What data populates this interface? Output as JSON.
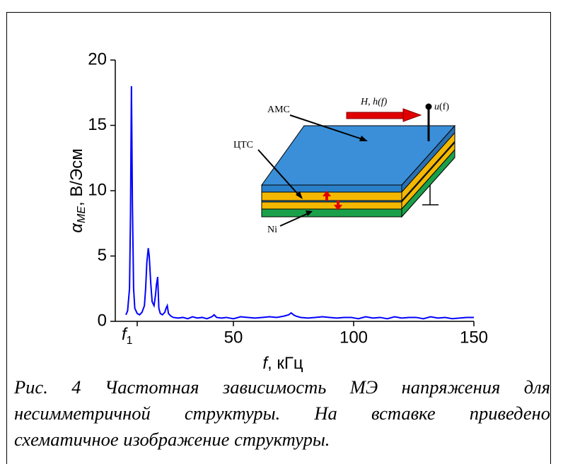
{
  "chart_data": {
    "type": "line",
    "x_label": {
      "symbol": "f",
      "unit": ", кГц"
    },
    "y_label": {
      "symbol": "α",
      "subscript": "ME",
      "unit": ", В/Эсм"
    },
    "color": "#0000ff",
    "x": [
      5.3,
      6,
      6.8,
      7.2,
      7.6,
      8,
      8.5,
      9,
      10,
      11,
      12,
      13,
      13.5,
      14,
      14.6,
      15,
      15.6,
      16.2,
      17,
      17.6,
      18,
      18.5,
      19,
      19.6,
      20.5,
      21.5,
      22,
      22.5,
      23,
      24,
      25,
      27,
      29,
      31,
      33,
      35,
      37,
      39,
      41,
      42,
      43,
      45,
      47,
      50,
      53,
      56,
      59,
      62,
      65,
      68,
      71,
      73,
      74,
      75,
      76,
      78,
      81,
      84,
      87,
      90,
      93,
      96,
      99,
      102,
      105,
      108,
      111,
      114,
      117,
      120,
      123,
      126,
      129,
      132,
      135,
      138,
      141,
      144,
      147,
      150
    ],
    "values": [
      0.5,
      0.8,
      2.5,
      8,
      18,
      9,
      2.5,
      1.0,
      0.6,
      0.5,
      0.7,
      1.2,
      2.5,
      4.5,
      5.6,
      5.0,
      3.0,
      1.5,
      1.2,
      2.0,
      2.8,
      3.4,
      1.0,
      0.6,
      0.5,
      0.7,
      1.0,
      1.2,
      0.6,
      0.4,
      0.3,
      0.25,
      0.3,
      0.2,
      0.35,
      0.25,
      0.3,
      0.2,
      0.35,
      0.5,
      0.3,
      0.25,
      0.3,
      0.2,
      0.35,
      0.3,
      0.25,
      0.3,
      0.35,
      0.3,
      0.4,
      0.5,
      0.65,
      0.5,
      0.4,
      0.3,
      0.25,
      0.3,
      0.35,
      0.3,
      0.25,
      0.3,
      0.3,
      0.2,
      0.35,
      0.25,
      0.3,
      0.2,
      0.35,
      0.25,
      0.3,
      0.3,
      0.2,
      0.35,
      0.25,
      0.3,
      0.2,
      0.25,
      0.3,
      0.3
    ],
    "xlim": [
      0,
      150
    ],
    "ylim": [
      0,
      20
    ],
    "xticks": [
      {
        "value": 10,
        "label": "f",
        "subscript": "1"
      },
      50,
      100,
      150
    ],
    "yticks": [
      0,
      5,
      10,
      15,
      20
    ]
  },
  "inset": {
    "top_layer": "АМС",
    "piezo_layer": "ЦТС",
    "bottom_layer": "Ni",
    "field": "H, h(f)",
    "voltage_symbol": "u",
    "voltage_arg": "(f)"
  },
  "caption": {
    "lines": [
      "Рис. 4 Частотная зависимость МЭ напряжения для",
      "несимметричной структуры. На вставке приведено",
      "схематичное изображение структуры."
    ]
  }
}
